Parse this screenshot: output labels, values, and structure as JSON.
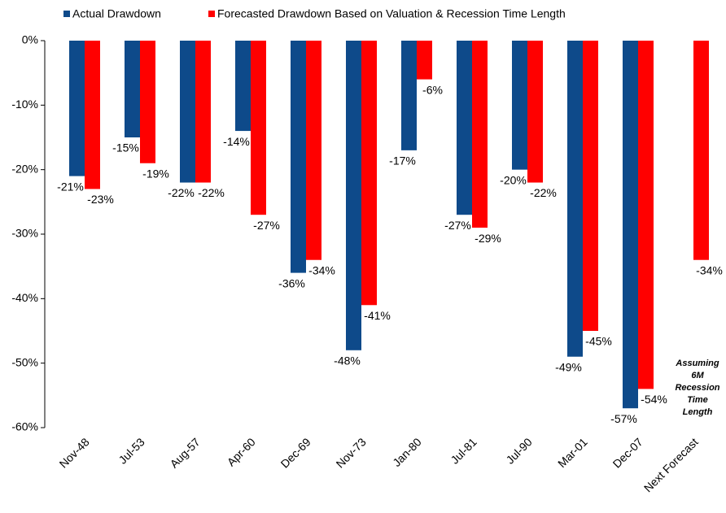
{
  "chart_data": {
    "type": "bar",
    "categories": [
      "Nov-48",
      "Jul-53",
      "Aug-57",
      "Apr-60",
      "Dec-69",
      "Nov-73",
      "Jan-80",
      "Jul-81",
      "Jul-90",
      "Mar-01",
      "Dec-07",
      "Next Forecast"
    ],
    "series": [
      {
        "name": "Actual Drawdown",
        "color": "#0e4a8a",
        "values": [
          -21,
          -15,
          -22,
          -14,
          -36,
          -48,
          -17,
          -27,
          -20,
          -49,
          -57,
          null
        ],
        "value_labels": [
          "-21%",
          "-15%",
          "-22%",
          "-14%",
          "-36%",
          "-48%",
          "-17%",
          "-27%",
          "-20%",
          "-49%",
          "-57%",
          null
        ]
      },
      {
        "name": "Forecasted Drawdown Based on Valuation & Recession Time Length",
        "color": "#ff0000",
        "values": [
          -23,
          -19,
          -22,
          -27,
          -34,
          -41,
          -6,
          -29,
          -22,
          -45,
          -54,
          -34
        ],
        "value_labels": [
          "-23%",
          "-19%",
          "-22%",
          "-27%",
          "-34%",
          "-41%",
          "-6%",
          "-29%",
          "-22%",
          "-45%",
          "-54%",
          "-34%"
        ]
      }
    ],
    "ylim": [
      -60,
      0
    ],
    "yticks": [
      {
        "value": 0,
        "label": "0%"
      },
      {
        "value": -10,
        "label": "-10%"
      },
      {
        "value": -20,
        "label": "-20%"
      },
      {
        "value": -30,
        "label": "-30%"
      },
      {
        "value": -40,
        "label": "-40%"
      },
      {
        "value": -50,
        "label": "-50%"
      },
      {
        "value": -60,
        "label": "-60%"
      }
    ],
    "annotation": "Assuming 6M Recession Time Length"
  }
}
